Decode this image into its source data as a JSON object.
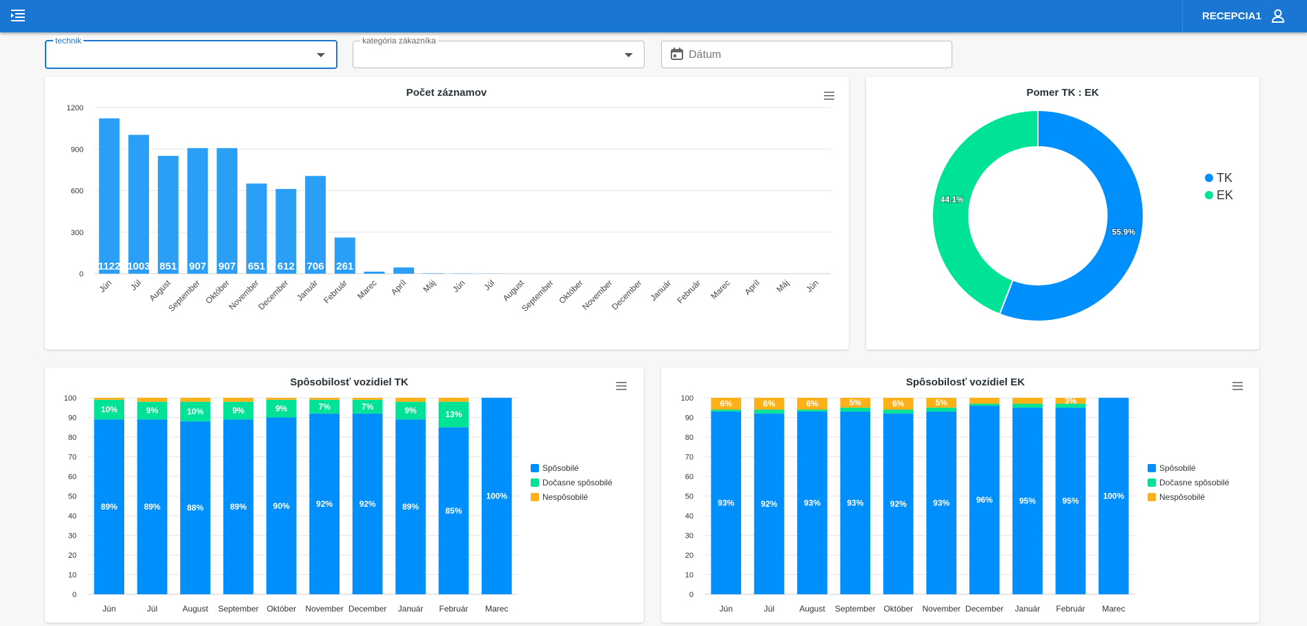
{
  "header": {
    "user": "RECEPCIA1"
  },
  "filters": [
    {
      "label": "technik"
    },
    {
      "label": "kategória zákazníka"
    },
    {
      "placeholder": "Dátum"
    }
  ],
  "chart_data": [
    {
      "type": "bar",
      "title": "Počet záznamov",
      "categories": [
        "Jún",
        "Júl",
        "August",
        "September",
        "Október",
        "November",
        "December",
        "Január",
        "Február",
        "Marec",
        "Apríl",
        "Máj",
        "Jún",
        "Júl",
        "August",
        "September",
        "Október",
        "November",
        "December",
        "Január",
        "Február",
        "Marec",
        "Apríl",
        "Máj",
        "Jún"
      ],
      "values": [
        1122,
        1003,
        851,
        907,
        907,
        651,
        612,
        706,
        261,
        15,
        45,
        3,
        2,
        1,
        0,
        0,
        0,
        0,
        0,
        0,
        0,
        0,
        0,
        0,
        0
      ],
      "color": "#2b9ef5",
      "ylim": [
        0,
        1200
      ],
      "yticks": [
        0,
        300,
        600,
        900,
        1200
      ],
      "grid": true
    },
    {
      "type": "pie",
      "title": "Pomer TK : EK",
      "categories": [
        "TK",
        "EK"
      ],
      "values": [
        55.9,
        44.1
      ],
      "value_labels": [
        "55.9%",
        "44.1%"
      ],
      "colors": [
        "#008ffb",
        "#00e396"
      ],
      "legend": "right"
    },
    {
      "type": "stacked_bar",
      "title": "Spôsobilosť vozidiel TK",
      "categories": [
        "Jún",
        "Júl",
        "August",
        "September",
        "Október",
        "November",
        "December",
        "Január",
        "Február",
        "Marec"
      ],
      "series": [
        {
          "name": "Spôsobilé",
          "color": "#008ffb",
          "values": [
            89,
            89,
            88,
            89,
            90,
            92,
            92,
            89,
            85,
            100
          ],
          "value_labels": [
            "89%",
            "89%",
            "88%",
            "89%",
            "90%",
            "92%",
            "92%",
            "89%",
            "85%",
            "100%"
          ]
        },
        {
          "name": "Dočasne spôsobilé",
          "color": "#00e396",
          "values": [
            10,
            9,
            10,
            9,
            9,
            7,
            7,
            9,
            13,
            0
          ],
          "value_labels": [
            "10%",
            "9%",
            "10%",
            "9%",
            "9%",
            "7%",
            "7%",
            "9%",
            "13%",
            null
          ]
        },
        {
          "name": "Nespôsobilé",
          "color": "#feb019",
          "values": [
            1,
            2,
            2,
            2,
            1,
            1,
            1,
            2,
            2,
            0
          ]
        }
      ],
      "ylim": [
        0,
        100
      ],
      "yticks": [
        0,
        10,
        20,
        30,
        40,
        50,
        60,
        70,
        80,
        90,
        100
      ],
      "grid": true,
      "legend": "right"
    },
    {
      "type": "stacked_bar",
      "title": "Spôsobilosť vozidiel EK",
      "categories": [
        "Jún",
        "Júl",
        "August",
        "September",
        "Október",
        "November",
        "December",
        "Január",
        "Február",
        "Marec"
      ],
      "series": [
        {
          "name": "Spôsobilé",
          "color": "#008ffb",
          "values": [
            93,
            92,
            93,
            93,
            92,
            93,
            96,
            95,
            95,
            100
          ],
          "value_labels": [
            "93%",
            "92%",
            "93%",
            "93%",
            "92%",
            "93%",
            "96%",
            "95%",
            "95%",
            "100%"
          ]
        },
        {
          "name": "Dočasne spôsobilé",
          "color": "#00e396",
          "values": [
            1,
            2,
            1,
            2,
            2,
            2,
            1,
            2,
            2,
            0
          ]
        },
        {
          "name": "Nespôsobilé",
          "color": "#feb019",
          "values": [
            6,
            6,
            6,
            5,
            6,
            5,
            3,
            3,
            3,
            0
          ],
          "value_labels": [
            "6%",
            "6%",
            "6%",
            "5%",
            "6%",
            "5%",
            null,
            null,
            "3%",
            null
          ]
        }
      ],
      "ylim": [
        0,
        100
      ],
      "yticks": [
        0,
        10,
        20,
        30,
        40,
        50,
        60,
        70,
        80,
        90,
        100
      ],
      "grid": true,
      "legend": "right"
    }
  ]
}
